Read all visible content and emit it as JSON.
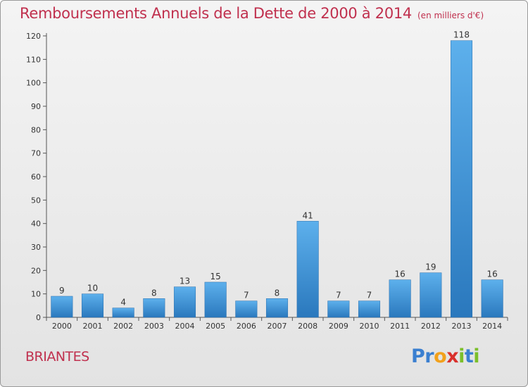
{
  "header": {
    "title": "Remboursements Annuels de la Dette de 2000 à 2014",
    "unit": "(en milliers d'€)"
  },
  "footer": {
    "commune": "BRIANTES",
    "logo_letters": [
      {
        "char": "P",
        "color": "#3a7fd0"
      },
      {
        "char": "r",
        "color": "#3a7fd0"
      },
      {
        "char": "o",
        "color": "#f2a11c"
      },
      {
        "char": "x",
        "color": "#d9302c"
      },
      {
        "char": "i",
        "color": "#7bbf2a"
      },
      {
        "char": "t",
        "color": "#3a7fd0"
      },
      {
        "char": "i",
        "color": "#7bbf2a"
      }
    ]
  },
  "chart_data": {
    "type": "bar",
    "title": "Remboursements Annuels de la Dette de 2000 à 2014",
    "subtitle": "(en milliers d'€)",
    "xlabel": "",
    "ylabel": "",
    "categories": [
      "2000",
      "2001",
      "2002",
      "2003",
      "2004",
      "2005",
      "2006",
      "2007",
      "2008",
      "2009",
      "2010",
      "2011",
      "2012",
      "2013",
      "2014"
    ],
    "values": [
      9,
      10,
      4,
      8,
      13,
      15,
      7,
      8,
      41,
      7,
      7,
      16,
      19,
      118,
      16
    ],
    "ylim": [
      0,
      120
    ],
    "yticks": [
      0,
      10,
      20,
      30,
      40,
      50,
      60,
      70,
      80,
      90,
      100,
      110,
      120
    ],
    "grid": false,
    "bar_color": "#3d8fd4"
  }
}
